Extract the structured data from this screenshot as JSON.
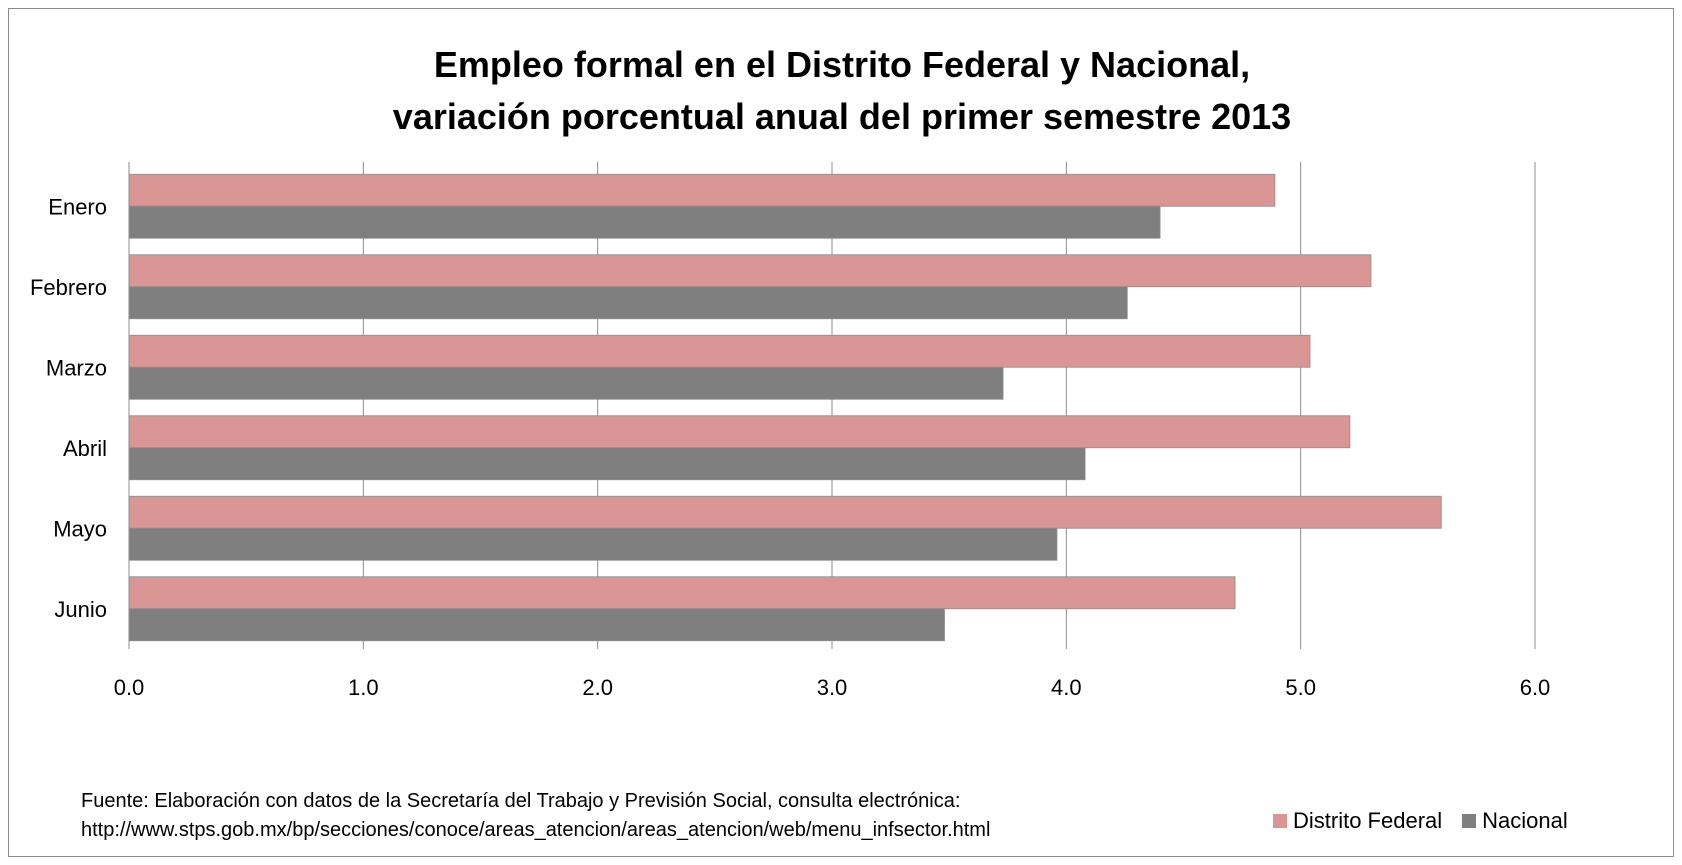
{
  "chart_data": {
    "type": "bar",
    "orientation": "horizontal",
    "title_lines": [
      "Empleo formal en el Distrito Federal y Nacional,",
      "variación porcentual anual del primer semestre 2013"
    ],
    "categories": [
      "Enero",
      "Febrero",
      "Marzo",
      "Abril",
      "Mayo",
      "Junio"
    ],
    "series": [
      {
        "name": "Distrito Federal",
        "color": "#d99694",
        "values": [
          4.89,
          5.3,
          5.04,
          5.21,
          5.6,
          4.72
        ]
      },
      {
        "name": "Nacional",
        "color": "#7f7f7f",
        "values": [
          4.4,
          4.26,
          3.73,
          4.08,
          3.96,
          3.48
        ]
      }
    ],
    "xlim": [
      0,
      6
    ],
    "x_ticks": [
      "0.0",
      "1.0",
      "2.0",
      "3.0",
      "4.0",
      "5.0",
      "6.0"
    ],
    "grid": true,
    "legend_position": "bottom-right"
  },
  "source_lines": [
    "Fuente: Elaboración con datos de la Secretaría del Trabajo y Previsión Social, consulta electrónica:",
    "http://www.stps.gob.mx/bp/secciones/conoce/areas_atencion/areas_atencion/web/menu_infsector.html"
  ]
}
